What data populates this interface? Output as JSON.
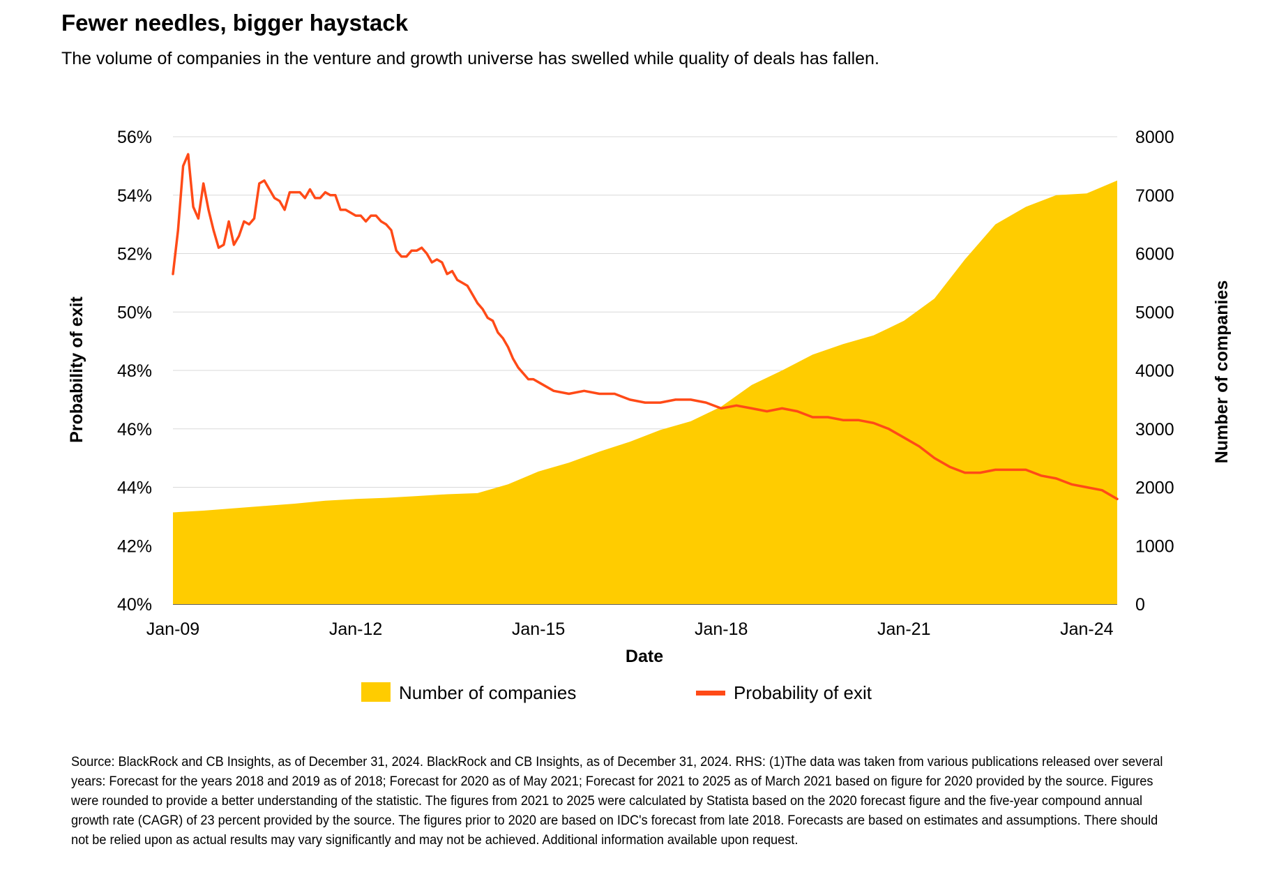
{
  "title": "Fewer needles, bigger haystack",
  "subtitle": "The volume of companies in the venture and growth universe has swelled while quality of deals has fallen.",
  "source": "Source: BlackRock and CB Insights, as of December 31, 2024. BlackRock and CB Insights, as of December 31, 2024. RHS: (1)The data was taken from various publications released over several years: Forecast for the years 2018 and 2019 as of 2018; Forecast for 2020 as of May 2021; Forecast for 2021 to 2025 as of March 2021 based on figure for 2020 provided by the source. Figures were rounded to provide a better understanding of the statistic. The figures from 2021 to 2025 were calculated by Statista based on the 2020 forecast figure and the five-year compound annual growth rate (CAGR) of 23 percent provided by the source. The figures prior to 2020 are based on IDC's forecast from late 2018. Forecasts are based on estimates and assumptions. There should not be relied upon as actual results may vary significantly and may not be achieved. Additional information available upon request.",
  "colors": {
    "area": "#FFCC00",
    "line": "#FF4A17",
    "grid": "#D9D9D9"
  },
  "chart_data": {
    "type": "line",
    "xlabel": "Date",
    "ylabel_left": "Probability of exit",
    "ylabel_right": "Number of companies",
    "x_ticks": [
      "Jan-09",
      "Jan-12",
      "Jan-15",
      "Jan-18",
      "Jan-21",
      "Jan-24"
    ],
    "y_left_ticks": [
      "40%",
      "42%",
      "44%",
      "46%",
      "48%",
      "50%",
      "52%",
      "54%",
      "56%"
    ],
    "y_right_ticks": [
      "0",
      "1000",
      "2000",
      "3000",
      "4000",
      "5000",
      "6000",
      "7000",
      "8000"
    ],
    "y_left_range": [
      40,
      56
    ],
    "y_right_range": [
      0,
      8000
    ],
    "x_range": [
      "2009-01",
      "2024-07"
    ],
    "legend": [
      {
        "name": "Number of companies",
        "style": "area"
      },
      {
        "name": "Probability of exit",
        "style": "line"
      }
    ],
    "series": [
      {
        "name": "Number of companies",
        "axis": "right",
        "style": "area",
        "points": [
          [
            "2009-01",
            1570
          ],
          [
            "2009-07",
            1600
          ],
          [
            "2010-01",
            1640
          ],
          [
            "2010-07",
            1680
          ],
          [
            "2011-01",
            1720
          ],
          [
            "2011-07",
            1770
          ],
          [
            "2012-01",
            1800
          ],
          [
            "2012-07",
            1820
          ],
          [
            "2013-01",
            1850
          ],
          [
            "2013-07",
            1880
          ],
          [
            "2014-01",
            1900
          ],
          [
            "2014-07",
            2050
          ],
          [
            "2015-01",
            2270
          ],
          [
            "2015-07",
            2420
          ],
          [
            "2016-01",
            2610
          ],
          [
            "2016-07",
            2780
          ],
          [
            "2017-01",
            2980
          ],
          [
            "2017-07",
            3130
          ],
          [
            "2018-01",
            3380
          ],
          [
            "2018-07",
            3750
          ],
          [
            "2019-01",
            4000
          ],
          [
            "2019-07",
            4270
          ],
          [
            "2020-01",
            4450
          ],
          [
            "2020-07",
            4600
          ],
          [
            "2021-01",
            4850
          ],
          [
            "2021-07",
            5230
          ],
          [
            "2022-01",
            5900
          ],
          [
            "2022-07",
            6500
          ],
          [
            "2023-01",
            6800
          ],
          [
            "2023-07",
            7000
          ],
          [
            "2024-01",
            7030
          ],
          [
            "2024-07",
            7250
          ]
        ]
      },
      {
        "name": "Probability of exit",
        "axis": "left",
        "style": "line",
        "points": [
          [
            "2009-01",
            51.3
          ],
          [
            "2009-02",
            52.8
          ],
          [
            "2009-03",
            55.0
          ],
          [
            "2009-04",
            55.4
          ],
          [
            "2009-05",
            53.6
          ],
          [
            "2009-06",
            53.2
          ],
          [
            "2009-07",
            54.4
          ],
          [
            "2009-08",
            53.5
          ],
          [
            "2009-09",
            52.8
          ],
          [
            "2009-10",
            52.2
          ],
          [
            "2009-11",
            52.3
          ],
          [
            "2009-12",
            53.1
          ],
          [
            "2010-01",
            52.3
          ],
          [
            "2010-02",
            52.6
          ],
          [
            "2010-03",
            53.1
          ],
          [
            "2010-04",
            53.0
          ],
          [
            "2010-05",
            53.2
          ],
          [
            "2010-06",
            54.4
          ],
          [
            "2010-07",
            54.5
          ],
          [
            "2010-08",
            54.2
          ],
          [
            "2010-09",
            53.9
          ],
          [
            "2010-10",
            53.8
          ],
          [
            "2010-11",
            53.5
          ],
          [
            "2010-12",
            54.1
          ],
          [
            "2011-01",
            54.1
          ],
          [
            "2011-02",
            54.1
          ],
          [
            "2011-03",
            53.9
          ],
          [
            "2011-04",
            54.2
          ],
          [
            "2011-05",
            53.9
          ],
          [
            "2011-06",
            53.9
          ],
          [
            "2011-07",
            54.1
          ],
          [
            "2011-08",
            54.0
          ],
          [
            "2011-09",
            54.0
          ],
          [
            "2011-10",
            53.5
          ],
          [
            "2011-11",
            53.5
          ],
          [
            "2011-12",
            53.4
          ],
          [
            "2012-01",
            53.3
          ],
          [
            "2012-02",
            53.3
          ],
          [
            "2012-03",
            53.1
          ],
          [
            "2012-04",
            53.3
          ],
          [
            "2012-05",
            53.3
          ],
          [
            "2012-06",
            53.1
          ],
          [
            "2012-07",
            53.0
          ],
          [
            "2012-08",
            52.8
          ],
          [
            "2012-09",
            52.1
          ],
          [
            "2012-10",
            51.9
          ],
          [
            "2012-11",
            51.9
          ],
          [
            "2012-12",
            52.1
          ],
          [
            "2013-01",
            52.1
          ],
          [
            "2013-02",
            52.2
          ],
          [
            "2013-03",
            52.0
          ],
          [
            "2013-04",
            51.7
          ],
          [
            "2013-05",
            51.8
          ],
          [
            "2013-06",
            51.7
          ],
          [
            "2013-07",
            51.3
          ],
          [
            "2013-08",
            51.4
          ],
          [
            "2013-09",
            51.1
          ],
          [
            "2013-10",
            51.0
          ],
          [
            "2013-11",
            50.9
          ],
          [
            "2013-12",
            50.6
          ],
          [
            "2014-01",
            50.3
          ],
          [
            "2014-02",
            50.1
          ],
          [
            "2014-03",
            49.8
          ],
          [
            "2014-04",
            49.7
          ],
          [
            "2014-05",
            49.3
          ],
          [
            "2014-06",
            49.1
          ],
          [
            "2014-07",
            48.8
          ],
          [
            "2014-08",
            48.4
          ],
          [
            "2014-09",
            48.1
          ],
          [
            "2014-10",
            47.9
          ],
          [
            "2014-11",
            47.7
          ],
          [
            "2014-12",
            47.7
          ],
          [
            "2015-01",
            47.6
          ],
          [
            "2015-04",
            47.3
          ],
          [
            "2015-07",
            47.2
          ],
          [
            "2015-10",
            47.3
          ],
          [
            "2016-01",
            47.2
          ],
          [
            "2016-04",
            47.2
          ],
          [
            "2016-07",
            47.0
          ],
          [
            "2016-10",
            46.9
          ],
          [
            "2017-01",
            46.9
          ],
          [
            "2017-04",
            47.0
          ],
          [
            "2017-07",
            47.0
          ],
          [
            "2017-10",
            46.9
          ],
          [
            "2018-01",
            46.7
          ],
          [
            "2018-04",
            46.8
          ],
          [
            "2018-07",
            46.7
          ],
          [
            "2018-10",
            46.6
          ],
          [
            "2019-01",
            46.7
          ],
          [
            "2019-04",
            46.6
          ],
          [
            "2019-07",
            46.4
          ],
          [
            "2019-10",
            46.4
          ],
          [
            "2020-01",
            46.3
          ],
          [
            "2020-04",
            46.3
          ],
          [
            "2020-07",
            46.2
          ],
          [
            "2020-10",
            46.0
          ],
          [
            "2021-01",
            45.7
          ],
          [
            "2021-04",
            45.4
          ],
          [
            "2021-07",
            45.0
          ],
          [
            "2021-10",
            44.7
          ],
          [
            "2022-01",
            44.5
          ],
          [
            "2022-04",
            44.5
          ],
          [
            "2022-07",
            44.6
          ],
          [
            "2022-10",
            44.6
          ],
          [
            "2023-01",
            44.6
          ],
          [
            "2023-04",
            44.4
          ],
          [
            "2023-07",
            44.3
          ],
          [
            "2023-10",
            44.1
          ],
          [
            "2024-01",
            44.0
          ],
          [
            "2024-04",
            43.9
          ],
          [
            "2024-07",
            43.6
          ]
        ]
      }
    ]
  }
}
